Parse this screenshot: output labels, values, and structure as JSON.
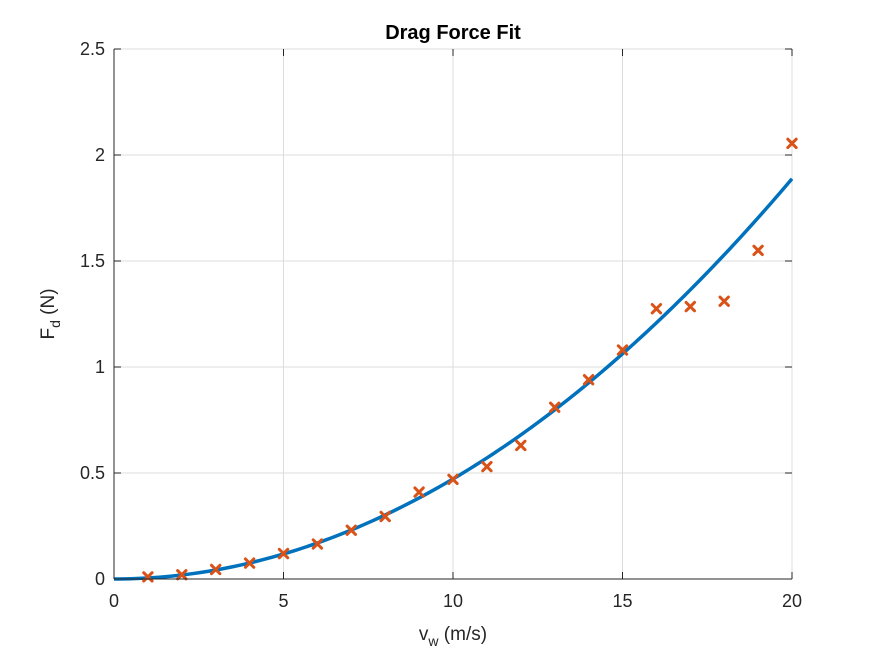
{
  "chart_data": {
    "type": "scatter",
    "title": "Drag Force Fit",
    "xlabel": {
      "main": "v",
      "sub": "w",
      "rest": " (m/s)"
    },
    "ylabel": {
      "main": "F",
      "sub": "d",
      "rest": " (N)"
    },
    "xlim": [
      0,
      20
    ],
    "ylim": [
      0,
      2.5
    ],
    "xticks": [
      0,
      5,
      10,
      15,
      20
    ],
    "yticks": [
      0,
      0.5,
      1,
      1.5,
      2,
      2.5
    ],
    "xtick_labels": [
      "0",
      "5",
      "10",
      "15",
      "20"
    ],
    "ytick_labels": [
      "0",
      "0.5",
      "1",
      "1.5",
      "2",
      "2.5"
    ],
    "grid": true,
    "series": [
      {
        "type": "scatter",
        "marker": "x",
        "color": "#D95319",
        "x": [
          1,
          2,
          3,
          4,
          5,
          6,
          7,
          8,
          9,
          10,
          11,
          12,
          13,
          14,
          15,
          16,
          17,
          18,
          19,
          20
        ],
        "y": [
          0.01,
          0.02,
          0.045,
          0.075,
          0.12,
          0.165,
          0.23,
          0.295,
          0.41,
          0.47,
          0.53,
          0.63,
          0.81,
          0.94,
          1.08,
          1.275,
          1.285,
          1.31,
          1.55,
          2.055
        ]
      },
      {
        "type": "line",
        "color": "#0072BD",
        "model": {
          "form": "a*x^2",
          "a": 0.00472
        },
        "x_range": [
          0,
          20
        ]
      }
    ]
  }
}
